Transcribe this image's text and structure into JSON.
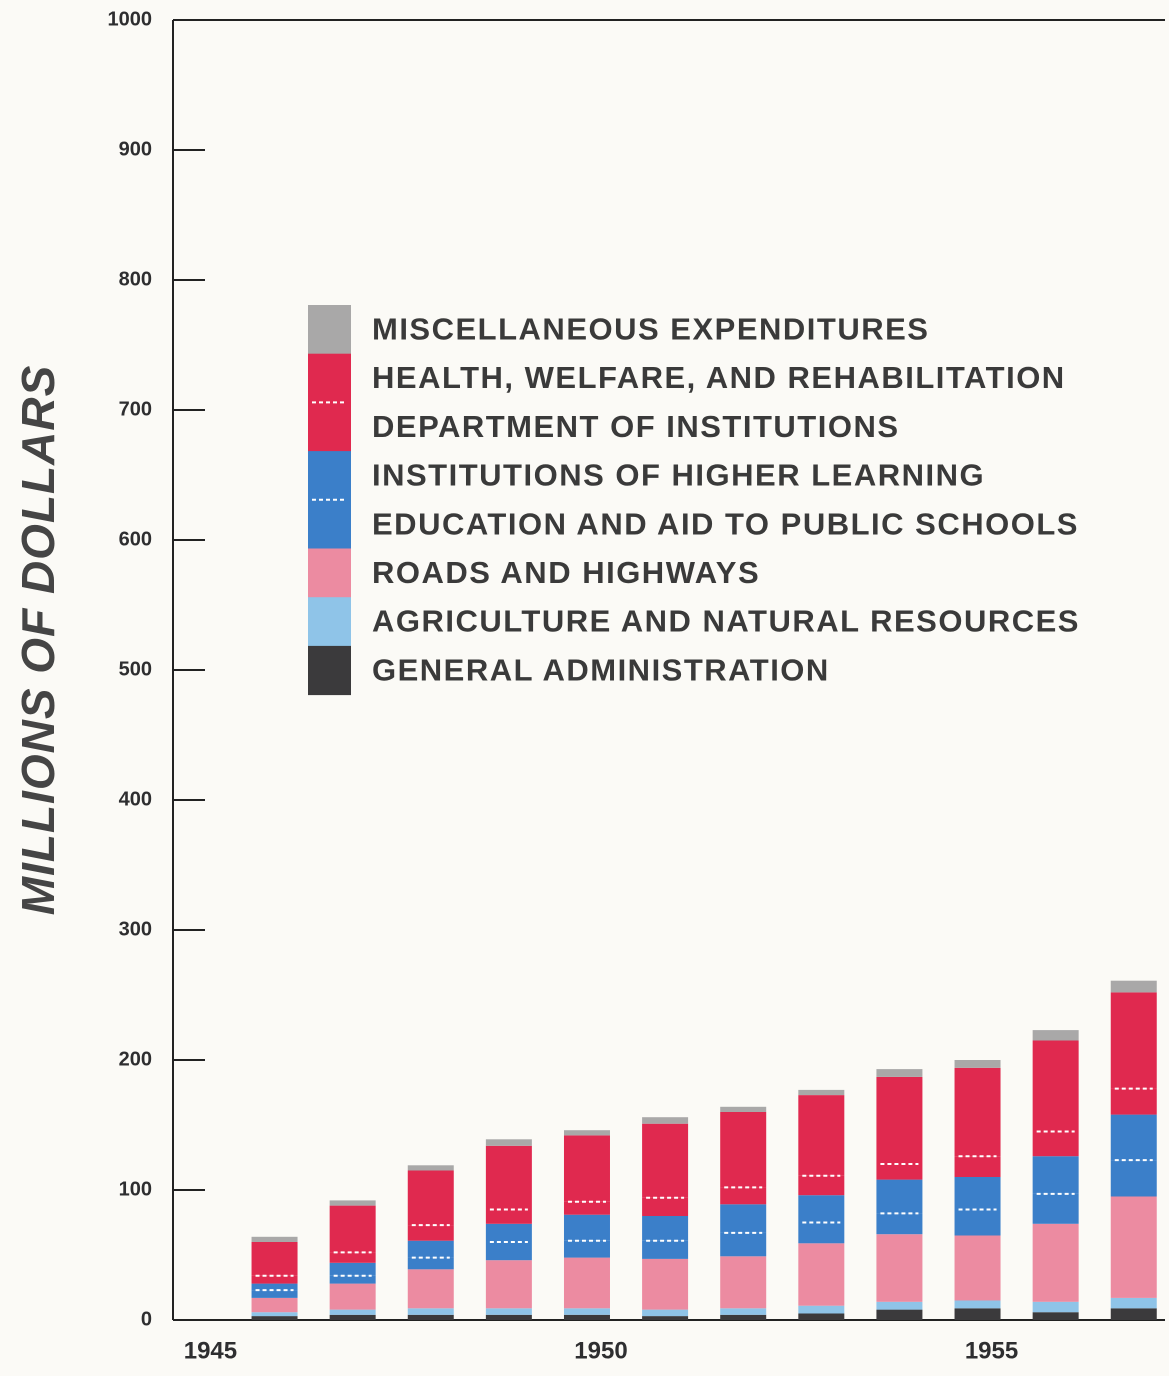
{
  "chart_data": {
    "type": "stacked_bar",
    "y_label": "MILLIONS OF DOLLARS",
    "x": [
      1946,
      1947,
      1948,
      1949,
      1950,
      1951,
      1952,
      1953,
      1954,
      1955,
      1956,
      1957
    ],
    "xlim": [
      1944.7,
      1957.4
    ],
    "xticks": [
      1945,
      1950,
      1955
    ],
    "ylim": [
      0,
      1000
    ],
    "yticks": [
      0,
      100,
      200,
      300,
      400,
      500,
      600,
      700,
      800,
      900,
      1000
    ],
    "series": [
      {
        "name": "GENERAL ADMINISTRATION",
        "color": "#3b3a3c",
        "values": [
          3,
          4,
          4,
          4,
          4,
          3,
          4,
          5,
          8,
          9,
          6,
          9
        ]
      },
      {
        "name": "AGRICULTURE AND NATURAL RESOURCES",
        "color": "#8fc4e8",
        "values": [
          3,
          4,
          5,
          5,
          5,
          5,
          5,
          6,
          6,
          6,
          8,
          8
        ]
      },
      {
        "name": "ROADS AND HIGHWAYS",
        "color": "#ec8ba1",
        "values": [
          11,
          20,
          30,
          37,
          39,
          39,
          40,
          48,
          52,
          50,
          60,
          78
        ]
      },
      {
        "name": "EDUCATION AND AID TO PUBLIC SCHOOLS",
        "color": "#3b7fc9",
        "values": [
          6,
          6,
          9,
          14,
          13,
          14,
          18,
          16,
          16,
          20,
          23,
          28
        ]
      },
      {
        "name": "INSTITUTIONS OF HIGHER LEARNING",
        "color": "#3b7fc9",
        "values": [
          5,
          10,
          13,
          14,
          20,
          19,
          22,
          21,
          26,
          25,
          29,
          35
        ]
      },
      {
        "name": "DEPARTMENT OF INSTITUTIONS",
        "color": "#e0294f",
        "values": [
          6,
          8,
          12,
          11,
          10,
          14,
          13,
          15,
          12,
          16,
          19,
          20
        ]
      },
      {
        "name": "HEALTH, WELFARE, AND REHABILITATION",
        "color": "#e0294f",
        "values": [
          26,
          36,
          42,
          49,
          51,
          57,
          58,
          62,
          67,
          68,
          70,
          74
        ]
      },
      {
        "name": "MISCELLANEOUS EXPENDITURES",
        "color": "#a9a8a8",
        "values": [
          4,
          4,
          4,
          5,
          4,
          5,
          4,
          4,
          6,
          6,
          8,
          9
        ]
      }
    ]
  }
}
